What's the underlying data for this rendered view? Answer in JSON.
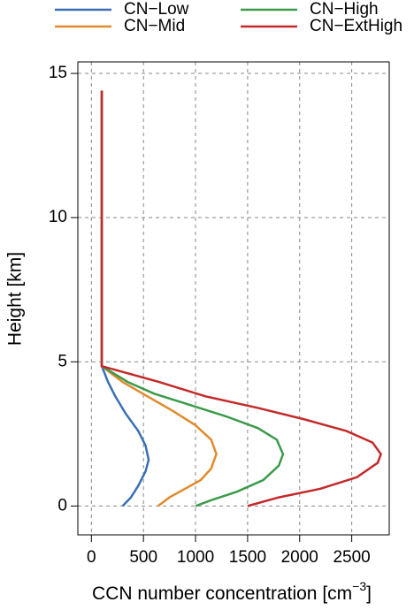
{
  "chart_data": {
    "type": "line",
    "xlabel": [
      "CCN number concentration [cm",
      "−3",
      "]"
    ],
    "ylabel": "Height [km]",
    "xlim": [
      -130,
      2860
    ],
    "ylim": [
      -1,
      15.4
    ],
    "xticks": [
      0,
      500,
      1000,
      1500,
      2000,
      2500
    ],
    "yticks": [
      0,
      5,
      10,
      15
    ],
    "grid": true,
    "series": [
      {
        "name": "CN−Low",
        "color": "#3a6fb5",
        "x": [
          300,
          380,
          450,
          520,
          550,
          520,
          450,
          330,
          230,
          160,
          100,
          100
        ],
        "values": [
          0,
          0.3,
          0.7,
          1.2,
          1.6,
          2.1,
          2.6,
          3.2,
          3.8,
          4.3,
          4.85,
          14.4
        ]
      },
      {
        "name": "CN−Mid",
        "color": "#e08a2c",
        "x": [
          640,
          750,
          900,
          1050,
          1150,
          1200,
          1150,
          1000,
          780,
          540,
          300,
          100,
          100
        ],
        "values": [
          0,
          0.3,
          0.6,
          0.9,
          1.3,
          1.8,
          2.3,
          2.8,
          3.3,
          3.8,
          4.3,
          4.85,
          14.4
        ]
      },
      {
        "name": "CN−High",
        "color": "#3c9a4a",
        "x": [
          1000,
          1150,
          1400,
          1650,
          1800,
          1840,
          1780,
          1600,
          1300,
          950,
          600,
          350,
          100,
          100
        ],
        "values": [
          0,
          0.2,
          0.5,
          0.9,
          1.4,
          1.8,
          2.3,
          2.7,
          3.1,
          3.5,
          3.9,
          4.3,
          4.85,
          14.4
        ]
      },
      {
        "name": "CN−ExtHigh",
        "color": "#c42a2a",
        "x": [
          1500,
          1800,
          2200,
          2550,
          2750,
          2780,
          2700,
          2450,
          2050,
          1600,
          1100,
          650,
          100,
          100
        ],
        "values": [
          0,
          0.3,
          0.6,
          1.0,
          1.5,
          1.8,
          2.2,
          2.6,
          3.0,
          3.4,
          3.8,
          4.3,
          4.85,
          14.4
        ]
      }
    ]
  }
}
